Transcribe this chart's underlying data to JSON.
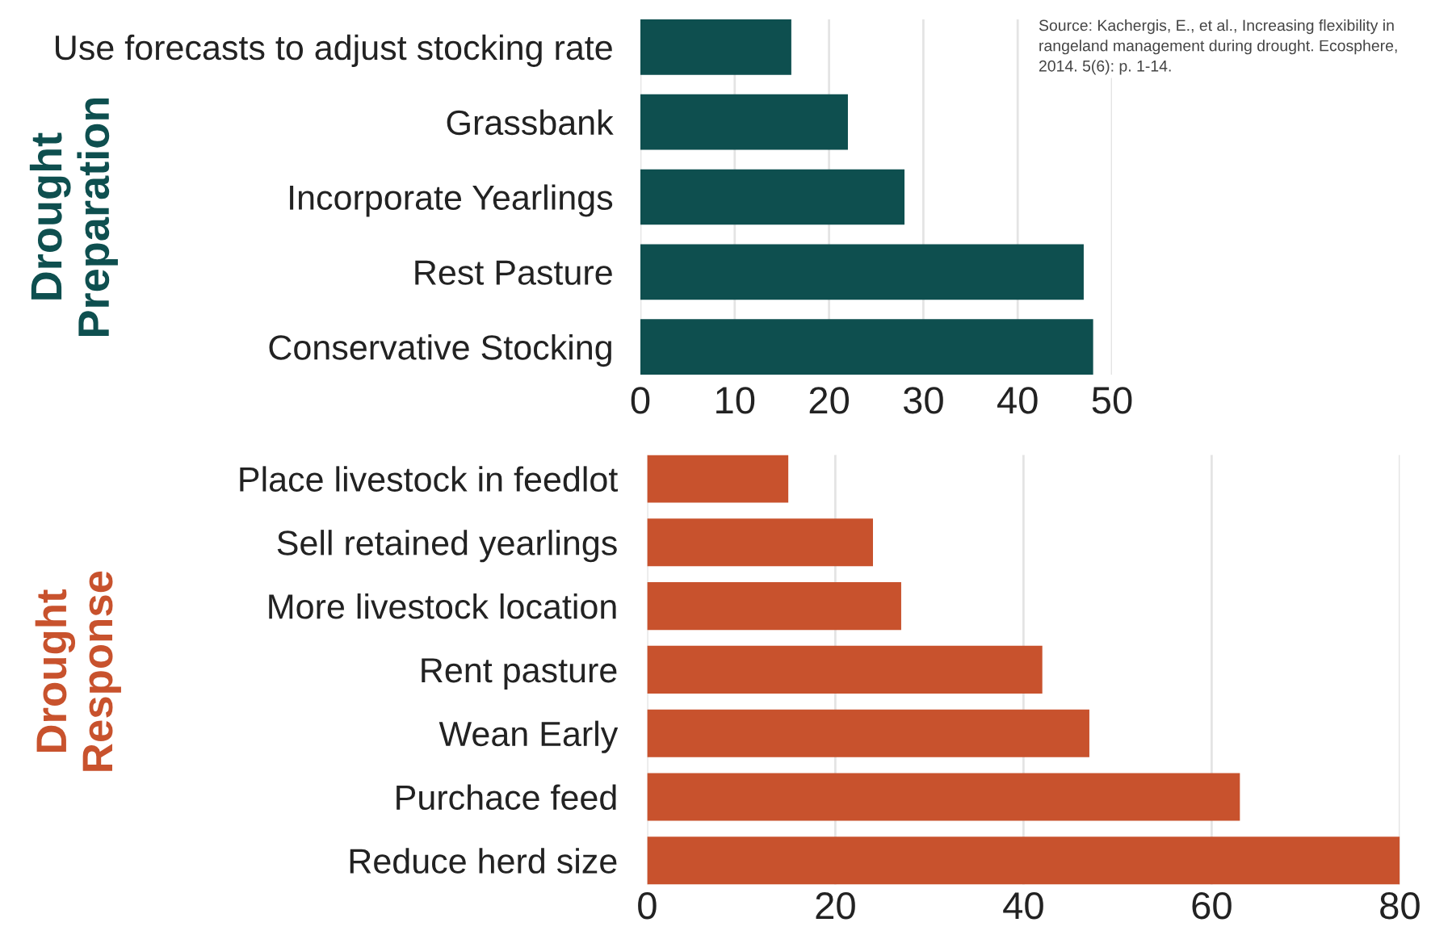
{
  "chart_data": [
    {
      "type": "bar",
      "orientation": "horizontal",
      "ylabel": "Drought\nPreparation",
      "categories": [
        "Use forecasts to adjust stocking rate",
        "Grassbank",
        "Incorporate Yearlings",
        "Rest Pasture",
        "Conservative Stocking"
      ],
      "values": [
        16,
        22,
        28,
        47,
        48
      ],
      "color": "#0e4f4f",
      "xlim": [
        0,
        50
      ],
      "xticks": [
        0,
        10,
        20,
        30,
        40,
        50
      ],
      "grid": "x",
      "annotations": [
        "Source: Kachergis, E., et al., Increasing flexibility in rangeland management during drought. Ecosphere, 2014. 5(6): p. 1-14."
      ]
    },
    {
      "type": "bar",
      "orientation": "horizontal",
      "ylabel": "Drought\nResponse",
      "categories": [
        "Place livestock in feedlot",
        "Sell retained yearlings",
        "More livestock location",
        "Rent pasture",
        "Wean Early",
        "Purchace feed",
        "Reduce herd size"
      ],
      "values": [
        15,
        24,
        27,
        42,
        47,
        63,
        80
      ],
      "color": "#c8522d",
      "xlim": [
        0,
        80
      ],
      "xticks": [
        0,
        20,
        40,
        60,
        80
      ],
      "grid": "x"
    }
  ]
}
